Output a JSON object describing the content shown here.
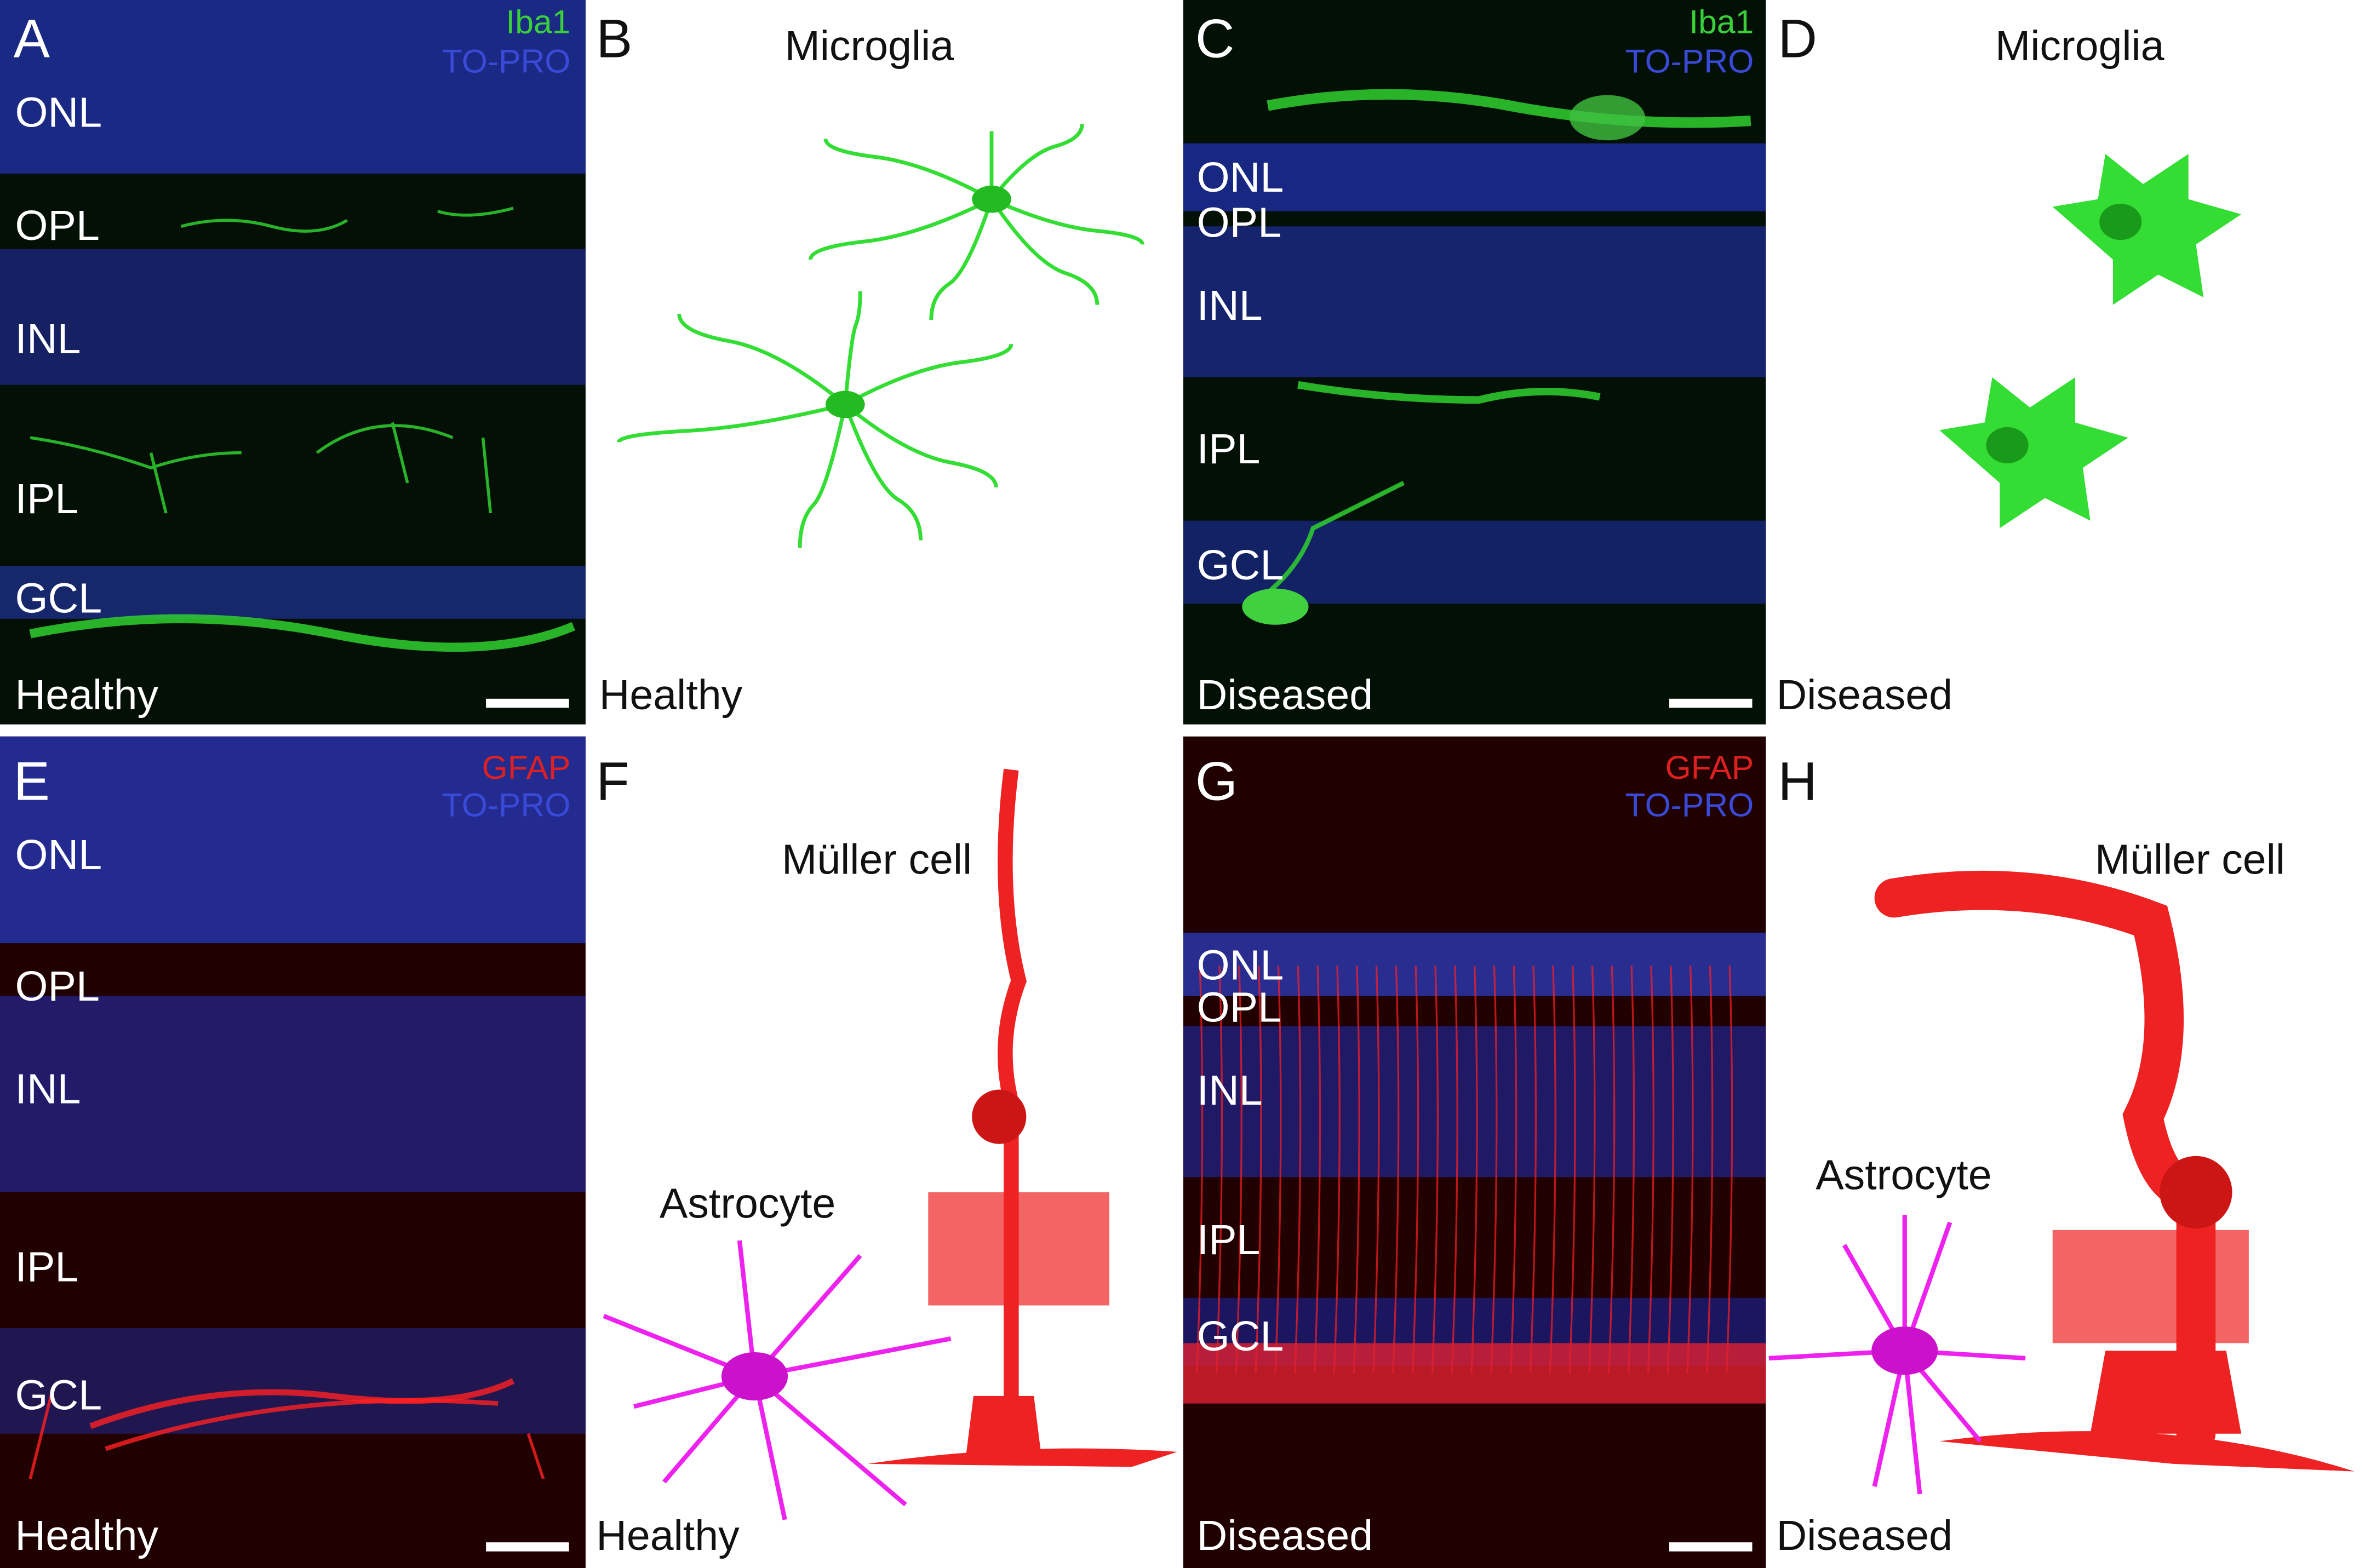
{
  "panels": [
    {
      "letter": "A",
      "stains": [
        "Iba1",
        "TO-PRO"
      ],
      "layers": [
        "ONL",
        "OPL",
        "INL",
        "IPL",
        "GCL"
      ],
      "condition": "Healthy"
    },
    {
      "letter": "B",
      "title": "Microglia",
      "condition": "Healthy"
    },
    {
      "letter": "C",
      "stains": [
        "Iba1",
        "TO-PRO"
      ],
      "layers": [
        "ONL",
        "OPL",
        "INL",
        "IPL",
        "GCL"
      ],
      "condition": "Diseased"
    },
    {
      "letter": "D",
      "title": "Microglia",
      "condition": "Diseased"
    },
    {
      "letter": "E",
      "stains": [
        "GFAP",
        "TO-PRO"
      ],
      "layers": [
        "ONL",
        "OPL",
        "INL",
        "IPL",
        "GCL"
      ],
      "condition": "Healthy"
    },
    {
      "letter": "F",
      "title": "Müller cell",
      "subtitle": "Astrocyte",
      "condition": "Healthy"
    },
    {
      "letter": "G",
      "stains": [
        "GFAP",
        "TO-PRO"
      ],
      "layers": [
        "ONL",
        "OPL",
        "INL",
        "IPL",
        "GCL"
      ],
      "condition": "Diseased"
    },
    {
      "letter": "H",
      "title": "Müller cell",
      "subtitle": "Astrocyte",
      "condition": "Diseased"
    }
  ]
}
